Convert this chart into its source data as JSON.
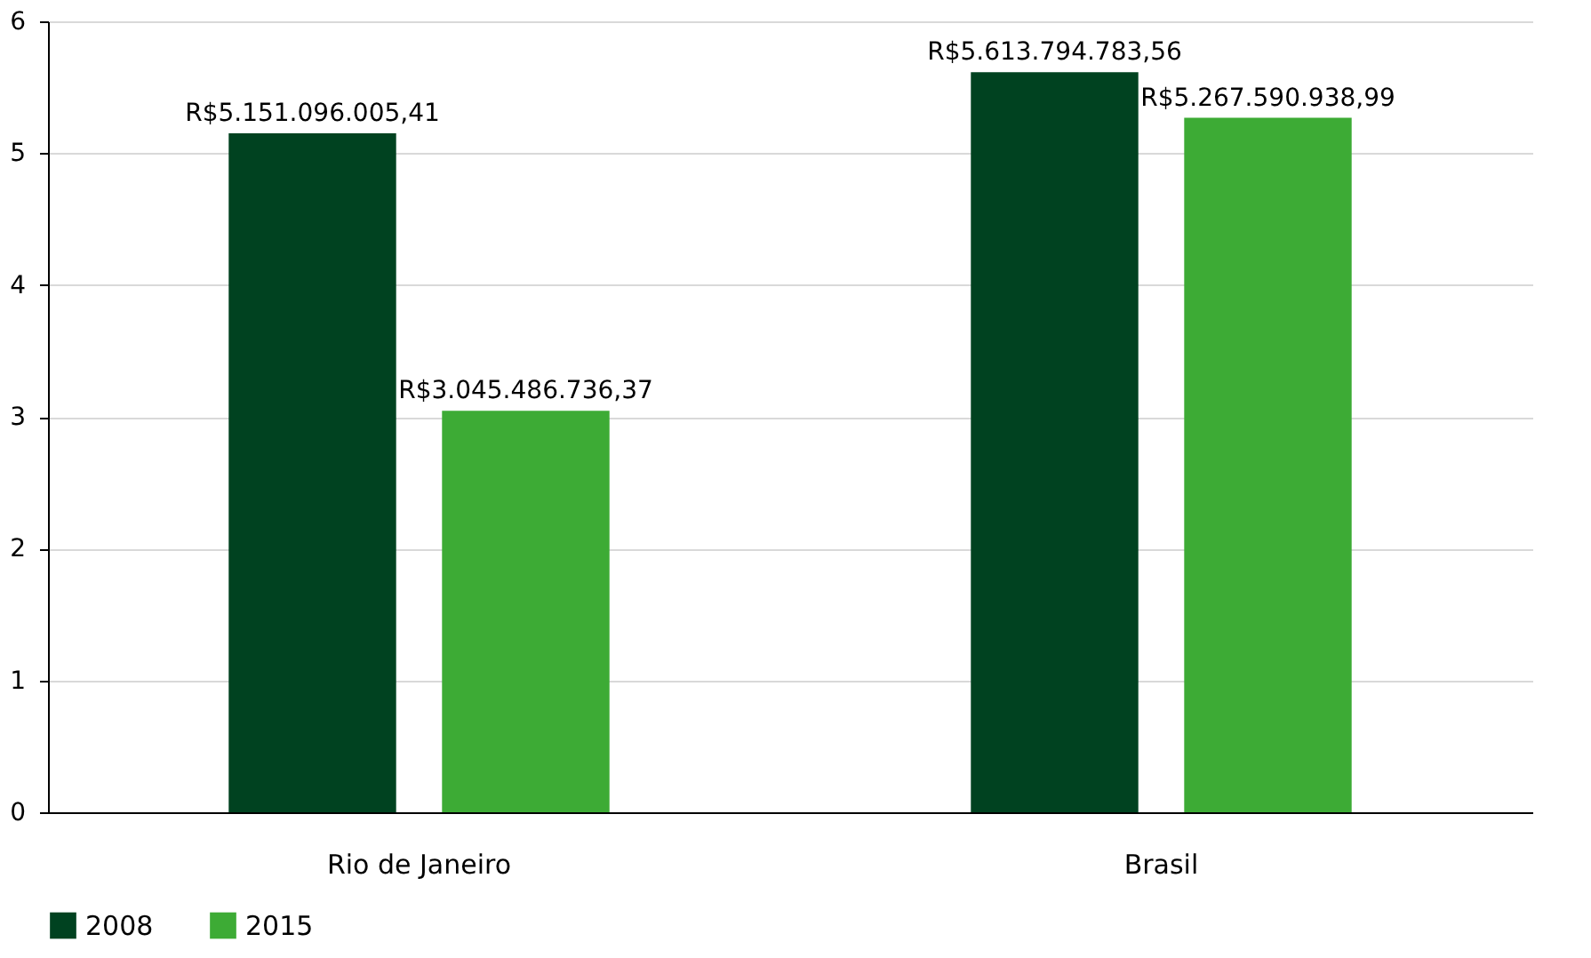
{
  "chart_data": {
    "type": "bar",
    "categories": [
      "Rio de Janeiro",
      "Brasil"
    ],
    "series": [
      {
        "name": "2008",
        "color": "#004220",
        "values": [
          5.151,
          5.614
        ],
        "value_labels": [
          "R$5.151.096.005,41",
          "R$5.613.794.783,56"
        ]
      },
      {
        "name": "2015",
        "color": "#3dab35",
        "values": [
          3.045,
          5.268
        ],
        "value_labels": [
          "R$3.045.486.736,37",
          "R$5.267.590.938,99"
        ]
      }
    ],
    "ylim": [
      0,
      6
    ],
    "yticks": [
      0,
      1,
      2,
      3,
      4,
      5,
      6
    ],
    "grid": "y",
    "legend": "bottom"
  }
}
